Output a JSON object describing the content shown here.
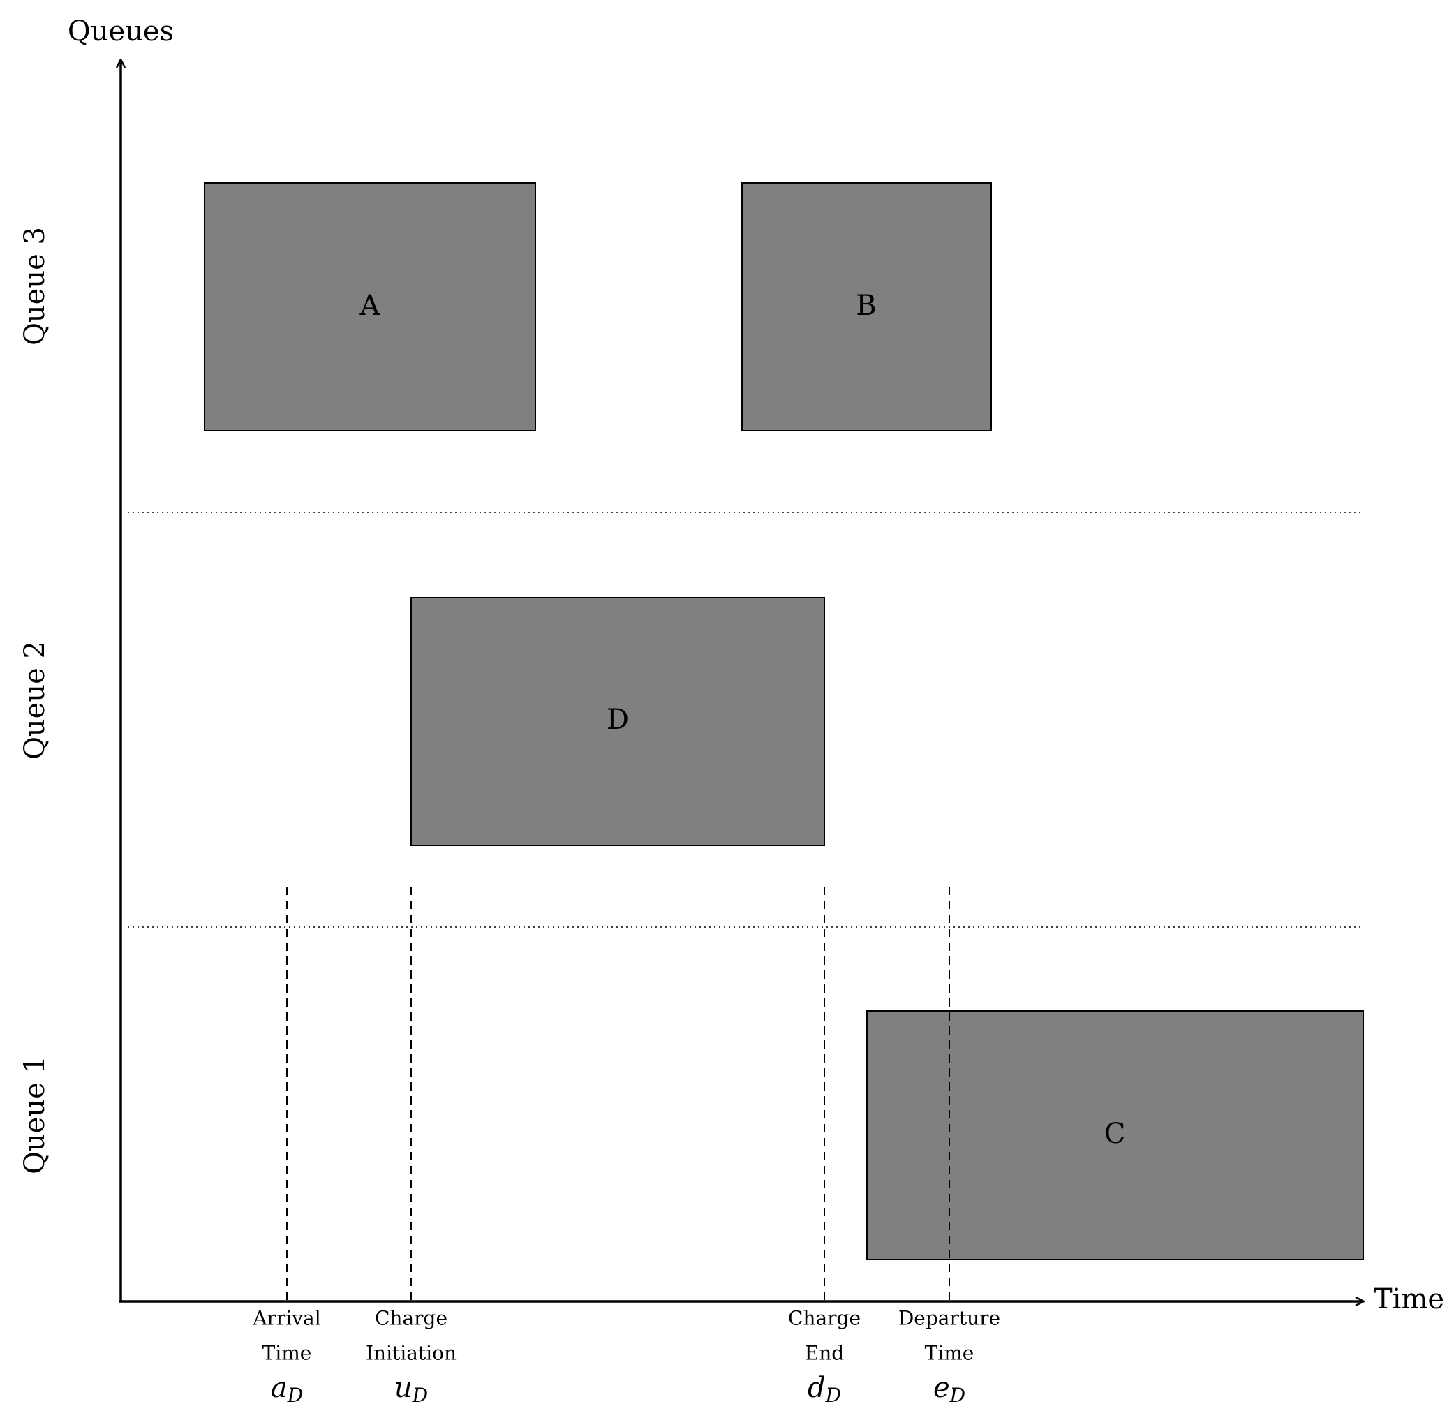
{
  "axes": {
    "y_label": "Queues",
    "x_label": "Time"
  },
  "queues": [
    {
      "label": "Queue 3"
    },
    {
      "label": "Queue 2"
    },
    {
      "label": "Queue 1"
    }
  ],
  "tasks": [
    {
      "label": "A",
      "queue": "Queue 3"
    },
    {
      "label": "B",
      "queue": "Queue 3"
    },
    {
      "label": "D",
      "queue": "Queue 2"
    },
    {
      "label": "C",
      "queue": "Queue 1"
    }
  ],
  "markers": [
    {
      "line1": "Arrival",
      "line2": "Time",
      "symbol": "a",
      "subscript": "D"
    },
    {
      "line1": "Charge",
      "line2": "Initiation",
      "symbol": "u",
      "subscript": "D"
    },
    {
      "line1": "Charge",
      "line2": "End",
      "symbol": "d",
      "subscript": "D"
    },
    {
      "line1": "Departure",
      "line2": "Time",
      "symbol": "e",
      "subscript": "D"
    }
  ],
  "colors": {
    "block_fill": "#808080",
    "line": "#000000"
  }
}
